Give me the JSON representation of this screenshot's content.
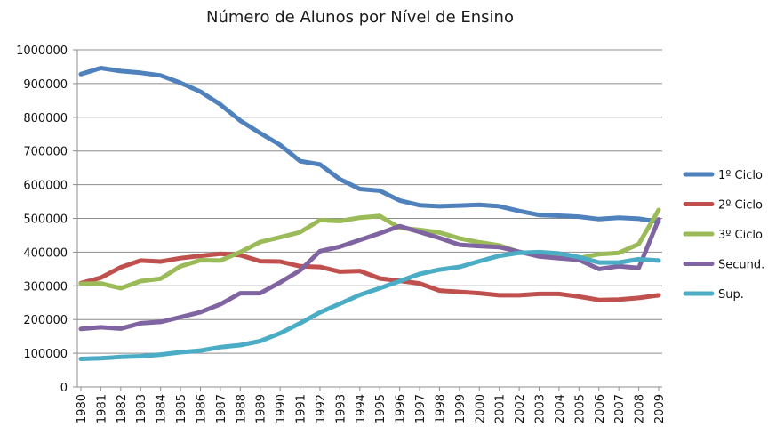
{
  "chart_data": {
    "type": "line",
    "title": "Número de Alunos por Nível de Ensino",
    "xlabel": "",
    "ylabel": "",
    "ylim": [
      0,
      1000000
    ],
    "yticks": [
      "0",
      "100000",
      "200000",
      "300000",
      "400000",
      "500000",
      "600000",
      "700000",
      "800000",
      "900000",
      "1000000"
    ],
    "categories": [
      "1980",
      "1981",
      "1982",
      "1983",
      "1984",
      "1985",
      "1986",
      "1987",
      "1988",
      "1989",
      "1990",
      "1991",
      "1992",
      "1993",
      "1994",
      "1995",
      "1996",
      "1997",
      "1998",
      "1999",
      "2000",
      "2001",
      "2002",
      "2003",
      "2004",
      "2005",
      "2006",
      "2007",
      "2008",
      "2009"
    ],
    "grid": true,
    "legend_position": "right",
    "series": [
      {
        "name": "1º Ciclo",
        "color": "#4F81BD",
        "values": [
          928000,
          946000,
          937000,
          932000,
          924000,
          902000,
          876000,
          838000,
          790000,
          753000,
          718000,
          670000,
          660000,
          616000,
          587000,
          582000,
          553000,
          539000,
          536000,
          538000,
          540000,
          536000,
          522000,
          510000,
          508000,
          505000,
          498000,
          502000,
          499000,
          490000
        ]
      },
      {
        "name": "2º Ciclo",
        "color": "#C0504D",
        "values": [
          308000,
          324000,
          355000,
          375000,
          372000,
          382000,
          389000,
          395000,
          391000,
          373000,
          372000,
          358000,
          356000,
          342000,
          344000,
          322000,
          315000,
          307000,
          286000,
          282000,
          278000,
          272000,
          272000,
          276000,
          276000,
          268000,
          258000,
          259000,
          264000,
          272000
        ]
      },
      {
        "name": "3º Ciclo",
        "color": "#9BBB59",
        "values": [
          306000,
          307000,
          293000,
          314000,
          321000,
          358000,
          376000,
          375000,
          400000,
          430000,
          444000,
          459000,
          495000,
          492000,
          502000,
          507000,
          472000,
          466000,
          458000,
          441000,
          429000,
          420000,
          400000,
          392000,
          388000,
          382000,
          394000,
          398000,
          424000,
          525000
        ]
      },
      {
        "name": "Secund.",
        "color": "#8064A2",
        "values": [
          172000,
          177000,
          173000,
          189000,
          193000,
          207000,
          222000,
          245000,
          278000,
          278000,
          310000,
          346000,
          403000,
          416000,
          436000,
          456000,
          477000,
          460000,
          442000,
          422000,
          418000,
          415000,
          401000,
          387000,
          382000,
          377000,
          350000,
          358000,
          353000,
          497000
        ]
      },
      {
        "name": "Sup.",
        "color": "#4BACC6",
        "values": [
          83000,
          85000,
          89000,
          91000,
          96000,
          103000,
          108000,
          118000,
          124000,
          136000,
          159000,
          189000,
          221000,
          247000,
          273000,
          293000,
          314000,
          335000,
          348000,
          356000,
          373000,
          389000,
          398000,
          400000,
          396000,
          385000,
          369000,
          369000,
          379000,
          375000
        ]
      }
    ]
  }
}
